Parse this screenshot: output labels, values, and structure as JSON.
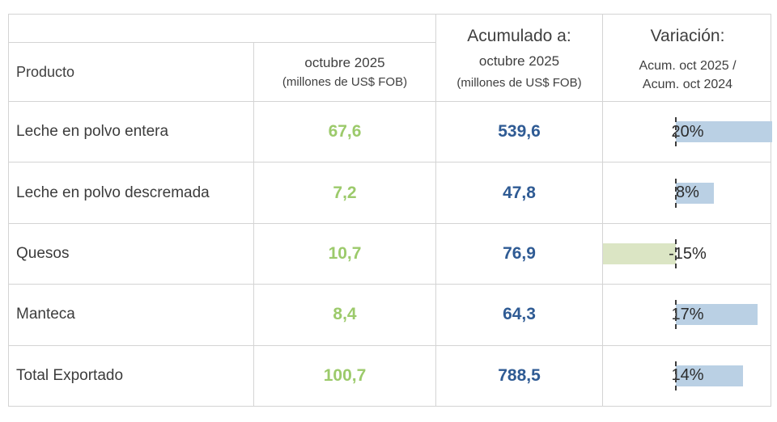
{
  "table": {
    "header": {
      "producto": "Producto",
      "monthly": {
        "line1": "octubre 2025",
        "line2": "(millones de US$ FOB)"
      },
      "accumulated": {
        "title": "Acumulado a:",
        "line1": "octubre 2025",
        "line2": "(millones de US$ FOB)"
      },
      "variation": {
        "title": "Variación:",
        "line1": "Acum. oct 2025 /",
        "line2": "Acum. oct 2024"
      }
    },
    "rows": [
      {
        "producto": "Leche en polvo entera",
        "monthly": "67,6",
        "accumulated": "539,6",
        "variation_label": "20%",
        "variation_value": 20
      },
      {
        "producto": "Leche en polvo descremada",
        "monthly": "7,2",
        "accumulated": "47,8",
        "variation_label": "8%",
        "variation_value": 8
      },
      {
        "producto": "Quesos",
        "monthly": "10,7",
        "accumulated": "76,9",
        "variation_label": "-15%",
        "variation_value": -15
      },
      {
        "producto": "Manteca",
        "monthly": "8,4",
        "accumulated": "64,3",
        "variation_label": "17%",
        "variation_value": 17
      },
      {
        "producto": "Total Exportado",
        "monthly": "100,7",
        "accumulated": "788,5",
        "variation_label": "14%",
        "variation_value": 14
      }
    ]
  },
  "chart_data": {
    "type": "table",
    "title": "Exportaciones de productos lácteos (millones de US$ FOB)",
    "columns": [
      "Producto",
      "octubre 2025 (millones de US$ FOB)",
      "Acumulado a: octubre 2025 (millones de US$ FOB)",
      "Variación: Acum. oct 2025 / Acum. oct 2024"
    ],
    "rows": [
      [
        "Leche en polvo entera",
        67.6,
        539.6,
        "20%"
      ],
      [
        "Leche en polvo descremada",
        7.2,
        47.8,
        "8%"
      ],
      [
        "Quesos",
        10.7,
        76.9,
        "-15%"
      ],
      [
        "Manteca",
        8.4,
        64.3,
        "17%"
      ],
      [
        "Total Exportado",
        100.7,
        788.5,
        "14%"
      ]
    ],
    "embedded_databars": {
      "type": "bar",
      "categories": [
        "Leche en polvo entera",
        "Leche en polvo descremada",
        "Quesos",
        "Manteca",
        "Total Exportado"
      ],
      "values": [
        20,
        8,
        -15,
        17,
        14
      ],
      "axis_min": -15,
      "axis_max": 20,
      "positive_color": "#bad0e4",
      "negative_color": "#dbe5c4"
    }
  },
  "colors": {
    "monthly_number": "#9cca6b",
    "accumulated_number": "#2f5b94",
    "bar_positive": "#bad0e4",
    "bar_negative": "#dbe5c4",
    "grid_border": "#d4d4d4",
    "text": "#3c3c3c"
  }
}
